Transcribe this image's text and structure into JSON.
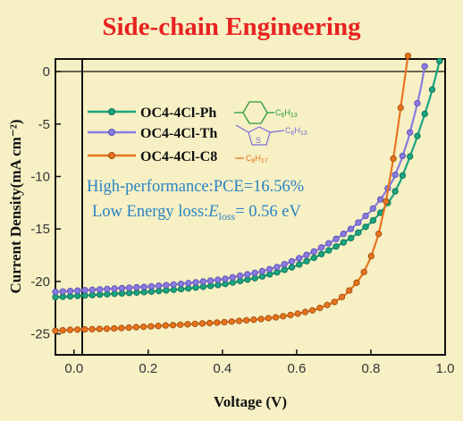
{
  "title": "Side-chain Engineering",
  "chart_data": {
    "type": "line",
    "xlabel": "Voltage (V)",
    "ylabel": "Current Density(mA cm⁻²)",
    "xlim": [
      -0.05,
      1.0
    ],
    "ylim": [
      -27,
      1.2
    ],
    "xticks": [
      "0.0",
      "0.2",
      "0.4",
      "0.6",
      "0.8",
      "1.0"
    ],
    "yticks": [
      "0",
      "-5",
      "-10",
      "-15",
      "-20",
      "-25"
    ],
    "legend_position": "upper-left",
    "series": [
      {
        "name": "OC4-4Cl-Ph",
        "color": "#1aa57f",
        "x": [
          -0.05,
          0.0,
          0.1,
          0.2,
          0.3,
          0.4,
          0.5,
          0.55,
          0.6,
          0.65,
          0.7,
          0.75,
          0.8,
          0.83,
          0.86,
          0.88,
          0.9,
          0.92,
          0.94,
          0.96,
          0.975,
          0.985
        ],
        "y": [
          -21.5,
          -21.4,
          -21.2,
          -21.0,
          -20.7,
          -20.3,
          -19.6,
          -19.1,
          -18.5,
          -17.7,
          -16.8,
          -15.8,
          -14.4,
          -13.3,
          -11.8,
          -10.4,
          -8.6,
          -6.7,
          -4.6,
          -2.4,
          -0.4,
          1.0
        ]
      },
      {
        "name": "OC4-4Cl-Th",
        "color": "#8a7be0",
        "x": [
          -0.05,
          0.0,
          0.1,
          0.2,
          0.3,
          0.4,
          0.5,
          0.55,
          0.6,
          0.65,
          0.7,
          0.75,
          0.8,
          0.83,
          0.86,
          0.88,
          0.9,
          0.92,
          0.935,
          0.945
        ],
        "y": [
          -21.0,
          -20.9,
          -20.7,
          -20.5,
          -20.2,
          -19.8,
          -19.1,
          -18.6,
          -17.9,
          -17.1,
          -16.1,
          -14.9,
          -13.3,
          -12.0,
          -10.3,
          -8.6,
          -6.5,
          -3.8,
          -1.5,
          0.5
        ]
      },
      {
        "name": "OC4-4Cl-C8",
        "color": "#e8741e",
        "x": [
          -0.05,
          0.0,
          0.1,
          0.2,
          0.3,
          0.4,
          0.5,
          0.55,
          0.6,
          0.65,
          0.7,
          0.73,
          0.76,
          0.78,
          0.8,
          0.82,
          0.84,
          0.86,
          0.87,
          0.88,
          0.89,
          0.9
        ],
        "y": [
          -24.7,
          -24.6,
          -24.5,
          -24.3,
          -24.1,
          -23.9,
          -23.6,
          -23.4,
          -23.1,
          -22.7,
          -22.0,
          -21.3,
          -20.2,
          -19.2,
          -17.7,
          -15.6,
          -12.5,
          -8.4,
          -6.0,
          -3.5,
          -1.0,
          1.5
        ]
      }
    ],
    "annotations": [
      "High-performance:PCE=16.56%",
      "Low Energy loss:"
    ]
  },
  "legend_structures": [
    {
      "substituent": "C6H13",
      "color": "#1aa57f",
      "icon": "phenyl-ring-icon"
    },
    {
      "substituent": "C6H13",
      "color": "#8a7be0",
      "icon": "thiophene-ring-icon"
    },
    {
      "substituent": "C8H17",
      "color": "#e8741e",
      "icon": "alkyl-chain-icon"
    }
  ],
  "eloss": {
    "symbol": "E",
    "subscript": "loss",
    "value": "= 0.56 eV"
  }
}
